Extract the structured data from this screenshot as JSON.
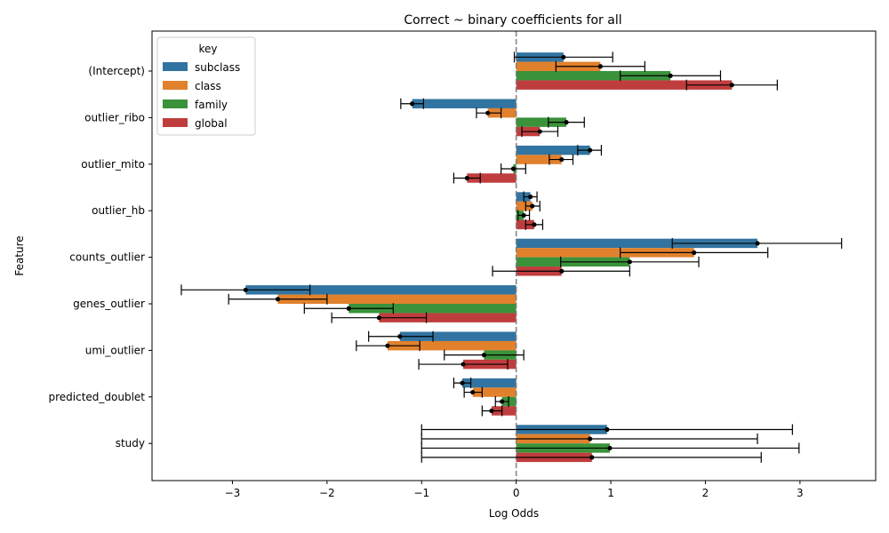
{
  "chart_data": {
    "type": "bar",
    "orientation": "horizontal",
    "title": "Correct ~ binary coefficients for all",
    "xlabel": "Log Odds",
    "ylabel": "Feature",
    "xlim": [
      -3.85,
      3.8
    ],
    "xticks": [
      -3,
      -2,
      -1,
      0,
      1,
      2,
      3
    ],
    "xtick_labels": [
      "−3",
      "−2",
      "−1",
      "0",
      "1",
      "2",
      "3"
    ],
    "reference_line_x": 0,
    "legend": {
      "title": "key",
      "position": "top-left"
    },
    "categories": [
      "(Intercept)",
      "outlier_ribo",
      "outlier_mito",
      "outlier_hb",
      "counts_outlier",
      "genes_outlier",
      "umi_outlier",
      "predicted_doublet",
      "study"
    ],
    "series": [
      {
        "name": "subclass",
        "color": "#3274a1",
        "values": [
          0.5,
          -1.1,
          0.78,
          0.15,
          2.55,
          -2.86,
          -1.23,
          -0.57,
          0.96
        ],
        "ci_low": [
          -0.02,
          -1.22,
          0.65,
          0.08,
          1.65,
          -3.54,
          -1.56,
          -0.66,
          -1.0
        ],
        "ci_high": [
          1.02,
          -0.98,
          0.9,
          0.22,
          3.44,
          -2.18,
          -0.88,
          -0.48,
          2.92
        ]
      },
      {
        "name": "class",
        "color": "#e1812c",
        "values": [
          0.89,
          -0.3,
          0.48,
          0.17,
          1.88,
          -2.52,
          -1.36,
          -0.46,
          0.78
        ],
        "ci_low": [
          0.42,
          -0.42,
          0.35,
          0.1,
          1.1,
          -3.04,
          -1.69,
          -0.55,
          -1.0
        ],
        "ci_high": [
          1.36,
          -0.16,
          0.6,
          0.25,
          2.66,
          -2.0,
          -1.02,
          -0.36,
          2.55
        ]
      },
      {
        "name": "family",
        "color": "#3a923a",
        "values": [
          1.63,
          0.53,
          -0.03,
          0.08,
          1.2,
          -1.77,
          -0.34,
          -0.15,
          0.99
        ],
        "ci_low": [
          1.1,
          0.34,
          -0.16,
          0.02,
          0.47,
          -2.24,
          -0.76,
          -0.22,
          -1.0
        ],
        "ci_high": [
          2.16,
          0.72,
          0.1,
          0.14,
          1.93,
          -1.3,
          0.08,
          -0.08,
          2.99
        ]
      },
      {
        "name": "global",
        "color": "#c03d3e",
        "values": [
          2.28,
          0.25,
          -0.52,
          0.19,
          0.48,
          -1.45,
          -0.56,
          -0.26,
          0.8
        ],
        "ci_low": [
          1.8,
          0.06,
          -0.66,
          0.1,
          -0.25,
          -1.95,
          -1.03,
          -0.36,
          -1.0
        ],
        "ci_high": [
          2.76,
          0.44,
          -0.38,
          0.28,
          1.2,
          -0.95,
          -0.09,
          -0.15,
          2.59
        ]
      }
    ],
    "grid": false
  }
}
